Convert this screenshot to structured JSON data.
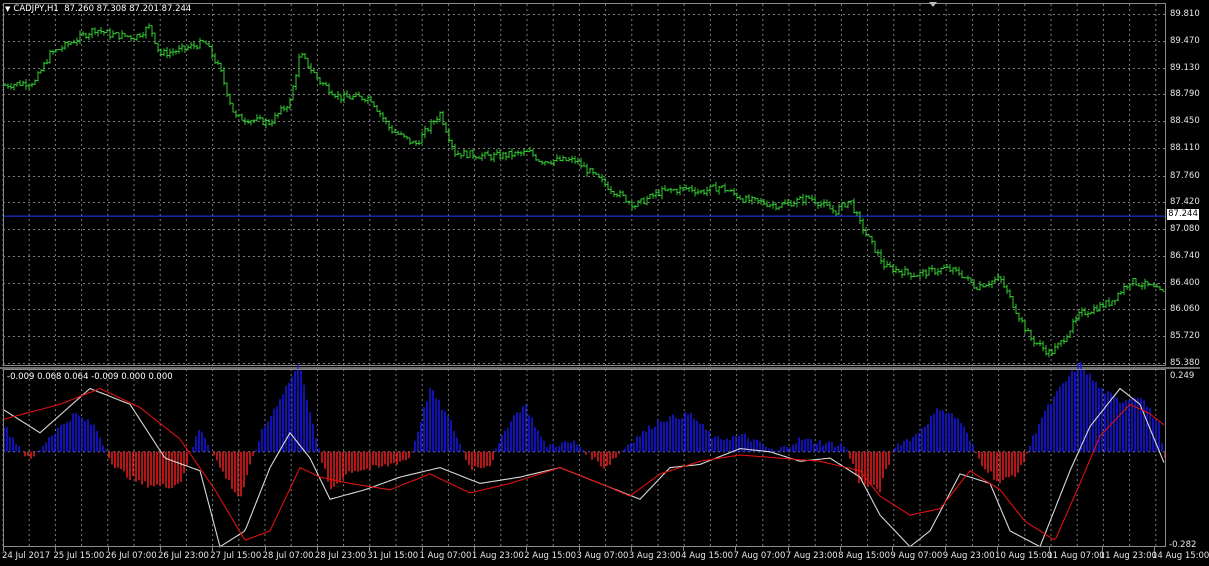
{
  "header": {
    "symbol": "CADJPY,H1",
    "ohlc": "87.260 87.308 87.201 87.244"
  },
  "oscillator": {
    "values": "-0.009 0.068 0.064 -0.009 0.000 0.000",
    "axis_top": "0.249",
    "axis_bottom": "-0.282"
  },
  "price_axis": [
    "89.810",
    "89.470",
    "89.130",
    "88.790",
    "88.450",
    "88.110",
    "87.760",
    "87.420",
    "87.080",
    "86.740",
    "86.400",
    "86.060",
    "85.720",
    "85.380"
  ],
  "current_price": "87.244",
  "time_axis": [
    "24 Jul 2017",
    "25 Jul 15:00",
    "26 Jul 07:00",
    "26 Jul 23:00",
    "27 Jul 15:00",
    "28 Jul 07:00",
    "28 Jul 23:00",
    "31 Jul 15:00",
    "1 Aug 07:00",
    "1 Aug 23:00",
    "2 Aug 15:00",
    "3 Aug 07:00",
    "3 Aug 23:00",
    "4 Aug 15:00",
    "7 Aug 07:00",
    "7 Aug 23:00",
    "8 Aug 15:00",
    "9 Aug 07:00",
    "9 Aug 23:00",
    "10 Aug 15:00",
    "11 Aug 07:00",
    "11 Aug 23:00",
    "14 Aug 15:00"
  ],
  "colors": {
    "candles": "#32cd32",
    "grid": "#7d7d7d",
    "current_price_line": "#1e3cff",
    "hist_positive": "#1a1aff",
    "hist_negative": "#ff2020",
    "signal_line": "#e01010",
    "main_line": "#d8d8d8"
  },
  "price_series_pts": [
    [
      0,
      88.9
    ],
    [
      35,
      88.95
    ],
    [
      50,
      89.3
    ],
    [
      95,
      89.62
    ],
    [
      110,
      89.55
    ],
    [
      135,
      89.52
    ],
    [
      150,
      89.65
    ],
    [
      160,
      89.3
    ],
    [
      180,
      89.35
    ],
    [
      205,
      89.45
    ],
    [
      220,
      89.1
    ],
    [
      235,
      88.5
    ],
    [
      270,
      88.43
    ],
    [
      290,
      88.7
    ],
    [
      300,
      89.3
    ],
    [
      320,
      88.95
    ],
    [
      340,
      88.75
    ],
    [
      370,
      88.75
    ],
    [
      390,
      88.35
    ],
    [
      415,
      88.15
    ],
    [
      440,
      88.55
    ],
    [
      455,
      88.05
    ],
    [
      490,
      88.0
    ],
    [
      530,
      88.05
    ],
    [
      540,
      87.95
    ],
    [
      575,
      87.95
    ],
    [
      610,
      87.6
    ],
    [
      635,
      87.38
    ],
    [
      660,
      87.55
    ],
    [
      690,
      87.6
    ],
    [
      700,
      87.55
    ],
    [
      720,
      87.62
    ],
    [
      745,
      87.45
    ],
    [
      780,
      87.38
    ],
    [
      810,
      87.48
    ],
    [
      835,
      87.3
    ],
    [
      850,
      87.45
    ],
    [
      860,
      87.15
    ],
    [
      885,
      86.6
    ],
    [
      915,
      86.5
    ],
    [
      945,
      86.58
    ],
    [
      960,
      86.52
    ],
    [
      975,
      86.35
    ],
    [
      1000,
      86.45
    ],
    [
      1030,
      85.7
    ],
    [
      1050,
      85.5
    ],
    [
      1060,
      85.62
    ],
    [
      1080,
      86.0
    ],
    [
      1110,
      86.15
    ],
    [
      1130,
      86.42
    ],
    [
      1150,
      86.35
    ],
    [
      1165,
      86.25
    ]
  ],
  "hist_pts": [
    [
      0,
      0.1
    ],
    [
      30,
      -0.03
    ],
    [
      50,
      0.05
    ],
    [
      75,
      0.12
    ],
    [
      95,
      0.08
    ],
    [
      115,
      -0.05
    ],
    [
      140,
      -0.1
    ],
    [
      165,
      -0.11
    ],
    [
      180,
      -0.1
    ],
    [
      200,
      0.08
    ],
    [
      220,
      -0.05
    ],
    [
      240,
      -0.15
    ],
    [
      260,
      0.05
    ],
    [
      285,
      0.2
    ],
    [
      300,
      0.28
    ],
    [
      315,
      0.05
    ],
    [
      330,
      -0.12
    ],
    [
      350,
      -0.06
    ],
    [
      380,
      -0.05
    ],
    [
      410,
      -0.02
    ],
    [
      430,
      0.2
    ],
    [
      450,
      0.1
    ],
    [
      470,
      -0.05
    ],
    [
      490,
      -0.04
    ],
    [
      510,
      0.1
    ],
    [
      525,
      0.15
    ],
    [
      545,
      0.02
    ],
    [
      575,
      0.03
    ],
    [
      605,
      -0.05
    ],
    [
      630,
      0.03
    ],
    [
      660,
      0.1
    ],
    [
      690,
      0.12
    ],
    [
      715,
      0.04
    ],
    [
      745,
      0.05
    ],
    [
      775,
      0.0
    ],
    [
      800,
      0.04
    ],
    [
      820,
      0.03
    ],
    [
      845,
      0.02
    ],
    [
      860,
      -0.1
    ],
    [
      880,
      -0.12
    ],
    [
      895,
      0.02
    ],
    [
      915,
      0.05
    ],
    [
      940,
      0.14
    ],
    [
      960,
      0.1
    ],
    [
      980,
      -0.03
    ],
    [
      1000,
      -0.1
    ],
    [
      1020,
      -0.06
    ],
    [
      1040,
      0.1
    ],
    [
      1060,
      0.2
    ],
    [
      1080,
      0.28
    ],
    [
      1100,
      0.2
    ],
    [
      1120,
      0.16
    ],
    [
      1140,
      0.18
    ],
    [
      1160,
      0.08
    ],
    [
      1166,
      -0.05
    ]
  ],
  "main_pts": [
    [
      0,
      0.14
    ],
    [
      40,
      0.06
    ],
    [
      90,
      0.2
    ],
    [
      130,
      0.15
    ],
    [
      165,
      -0.02
    ],
    [
      200,
      -0.06
    ],
    [
      220,
      -0.3
    ],
    [
      245,
      -0.25
    ],
    [
      270,
      -0.05
    ],
    [
      290,
      0.06
    ],
    [
      310,
      -0.02
    ],
    [
      330,
      -0.15
    ],
    [
      365,
      -0.12
    ],
    [
      400,
      -0.08
    ],
    [
      440,
      -0.05
    ],
    [
      480,
      -0.1
    ],
    [
      520,
      -0.08
    ],
    [
      560,
      -0.05
    ],
    [
      600,
      -0.1
    ],
    [
      640,
      -0.15
    ],
    [
      670,
      -0.05
    ],
    [
      700,
      -0.04
    ],
    [
      740,
      0.01
    ],
    [
      770,
      0.0
    ],
    [
      800,
      -0.03
    ],
    [
      830,
      -0.02
    ],
    [
      860,
      -0.08
    ],
    [
      880,
      -0.2
    ],
    [
      910,
      -0.3
    ],
    [
      930,
      -0.25
    ],
    [
      960,
      -0.07
    ],
    [
      990,
      -0.1
    ],
    [
      1010,
      -0.25
    ],
    [
      1040,
      -0.3
    ],
    [
      1070,
      -0.06
    ],
    [
      1090,
      0.08
    ],
    [
      1120,
      0.2
    ],
    [
      1140,
      0.15
    ],
    [
      1166,
      -0.05
    ]
  ],
  "signal_pts": [
    [
      0,
      0.1
    ],
    [
      60,
      0.15
    ],
    [
      100,
      0.2
    ],
    [
      140,
      0.14
    ],
    [
      180,
      0.04
    ],
    [
      215,
      -0.12
    ],
    [
      245,
      -0.28
    ],
    [
      270,
      -0.25
    ],
    [
      300,
      -0.05
    ],
    [
      320,
      -0.08
    ],
    [
      350,
      -0.1
    ],
    [
      390,
      -0.12
    ],
    [
      430,
      -0.07
    ],
    [
      470,
      -0.13
    ],
    [
      510,
      -0.1
    ],
    [
      560,
      -0.05
    ],
    [
      600,
      -0.1
    ],
    [
      630,
      -0.14
    ],
    [
      660,
      -0.07
    ],
    [
      700,
      -0.03
    ],
    [
      740,
      -0.01
    ],
    [
      780,
      -0.02
    ],
    [
      820,
      -0.03
    ],
    [
      860,
      -0.06
    ],
    [
      880,
      -0.14
    ],
    [
      910,
      -0.2
    ],
    [
      940,
      -0.18
    ],
    [
      970,
      -0.06
    ],
    [
      1000,
      -0.12
    ],
    [
      1025,
      -0.22
    ],
    [
      1055,
      -0.28
    ],
    [
      1080,
      -0.1
    ],
    [
      1100,
      0.05
    ],
    [
      1130,
      0.15
    ],
    [
      1150,
      0.12
    ],
    [
      1166,
      0.08
    ]
  ]
}
